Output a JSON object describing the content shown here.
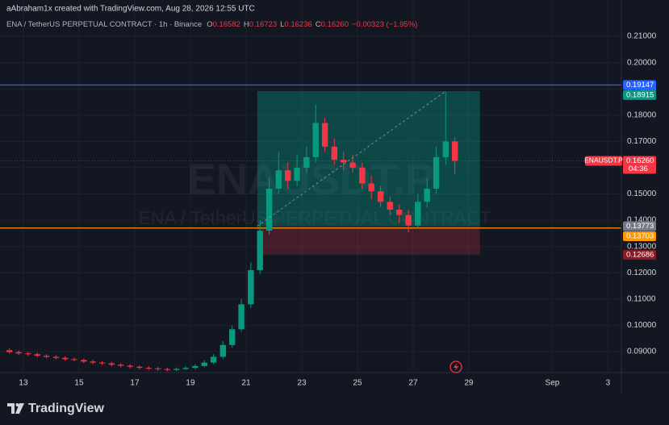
{
  "header": {
    "credit": "aAbraham1x created with TradingView.com, Aug 28, 2026 12:55 UTC",
    "symbol_line": "ENA / TetherUS PERPETUAL CONTRACT · 1h · Binance",
    "ohlc": [
      {
        "label": "O",
        "value": "0.16582"
      },
      {
        "label": "H",
        "value": "0.16723"
      },
      {
        "label": "L",
        "value": "0.16236"
      },
      {
        "label": "C",
        "value": "0.16260"
      }
    ],
    "change": "−0.00323 (−1.95%)"
  },
  "watermark": {
    "symbol": "ENAUSDT.P",
    "description": "ENA / TetherUS PERPETUAL CONTRACT"
  },
  "footer": {
    "brand": "TradingView"
  },
  "chart_data": {
    "type": "candlestick",
    "x": [
      12.5,
      12.83,
      13.17,
      13.5,
      13.83,
      14.17,
      14.5,
      14.83,
      15.17,
      15.5,
      15.83,
      16.17,
      16.5,
      16.83,
      17.17,
      17.5,
      17.83,
      18.17,
      18.5,
      18.83,
      19.17,
      19.5,
      19.83,
      20.17,
      20.5,
      20.83,
      21.17,
      21.5,
      21.83,
      22.17,
      22.5,
      22.83,
      23.17,
      23.5,
      23.83,
      24.17,
      24.5,
      24.83,
      25.17,
      25.5,
      25.83,
      26.17,
      26.5,
      26.83,
      27.17,
      27.5,
      27.83,
      28.17,
      28.5
    ],
    "open": [
      0.0905,
      0.0898,
      0.0893,
      0.089,
      0.0884,
      0.088,
      0.0876,
      0.0871,
      0.0868,
      0.0862,
      0.0858,
      0.0855,
      0.085,
      0.0846,
      0.0842,
      0.0838,
      0.0836,
      0.0833,
      0.083,
      0.0834,
      0.0838,
      0.0845,
      0.0858,
      0.088,
      0.0925,
      0.0985,
      0.108,
      0.121,
      0.136,
      0.152,
      0.159,
      0.155,
      0.16,
      0.164,
      0.177,
      0.168,
      0.163,
      0.162,
      0.16,
      0.154,
      0.151,
      0.147,
      0.144,
      0.142,
      0.138,
      0.147,
      0.152,
      0.164,
      0.17
    ],
    "high": [
      0.0912,
      0.0904,
      0.0899,
      0.0896,
      0.089,
      0.0886,
      0.0882,
      0.0877,
      0.0874,
      0.0868,
      0.0864,
      0.0861,
      0.0856,
      0.0852,
      0.0848,
      0.0844,
      0.0842,
      0.0839,
      0.084,
      0.0844,
      0.0852,
      0.0866,
      0.089,
      0.094,
      0.1,
      0.11,
      0.124,
      0.14,
      0.156,
      0.166,
      0.162,
      0.165,
      0.168,
      0.184,
      0.179,
      0.171,
      0.166,
      0.165,
      0.162,
      0.157,
      0.153,
      0.149,
      0.146,
      0.144,
      0.15,
      0.156,
      0.168,
      0.1891,
      0.1715
    ],
    "low": [
      0.0892,
      0.0887,
      0.0884,
      0.0878,
      0.0874,
      0.087,
      0.0865,
      0.0862,
      0.0856,
      0.0852,
      0.0849,
      0.0844,
      0.084,
      0.0836,
      0.0832,
      0.083,
      0.0827,
      0.0824,
      0.0825,
      0.0829,
      0.0833,
      0.084,
      0.0852,
      0.0872,
      0.0915,
      0.0975,
      0.1065,
      0.1195,
      0.1345,
      0.15,
      0.152,
      0.153,
      0.158,
      0.162,
      0.166,
      0.161,
      0.159,
      0.158,
      0.152,
      0.148,
      0.145,
      0.142,
      0.139,
      0.1354,
      0.137,
      0.145,
      0.15,
      0.161,
      0.1575
    ],
    "close": [
      0.0898,
      0.0893,
      0.089,
      0.0884,
      0.088,
      0.0876,
      0.0871,
      0.0868,
      0.0862,
      0.0858,
      0.0855,
      0.085,
      0.0846,
      0.0842,
      0.0838,
      0.0836,
      0.0833,
      0.083,
      0.0834,
      0.0838,
      0.0845,
      0.0858,
      0.088,
      0.0925,
      0.0985,
      0.108,
      0.121,
      0.136,
      0.152,
      0.159,
      0.155,
      0.16,
      0.164,
      0.177,
      0.168,
      0.163,
      0.162,
      0.16,
      0.154,
      0.151,
      0.147,
      0.144,
      0.142,
      0.138,
      0.147,
      0.152,
      0.164,
      0.17,
      0.1626
    ],
    "up_color": "#089981",
    "down_color": "#f23645",
    "xlim": [
      12.16,
      34.48
    ],
    "xticks": [
      13,
      15,
      17,
      19,
      21,
      23,
      25,
      27,
      29,
      {
        "value": 32,
        "label": "Sep"
      },
      {
        "value": 34,
        "label": "3"
      }
    ],
    "ylim": [
      0.082,
      0.2183
    ],
    "yticks": [
      {
        "value": 0.09,
        "label": "0.09000"
      },
      {
        "value": 0.1,
        "label": "0.10000"
      },
      {
        "value": 0.11,
        "label": "0.11000"
      },
      {
        "value": 0.12,
        "label": "0.12000"
      },
      {
        "value": 0.13,
        "label": "0.13000"
      },
      {
        "value": 0.14,
        "label": "0.14000"
      },
      {
        "value": 0.15,
        "label": "0.15000"
      },
      {
        "value": 0.16,
        "label": "0.16000"
      },
      {
        "value": 0.17,
        "label": "0.17000"
      },
      {
        "value": 0.18,
        "label": "0.18000"
      },
      {
        "value": 0.19,
        "label": "0.19000"
      },
      {
        "value": 0.2,
        "label": "0.20000"
      },
      {
        "value": 0.21,
        "label": "0.21000"
      }
    ],
    "grid": true,
    "price_lines": [
      {
        "value": 0.19147,
        "color": "#2962ff"
      },
      {
        "value": 0.13703,
        "color": "#ff9800"
      }
    ],
    "position": {
      "x": [
        21.4,
        29.4
      ],
      "entry": 0.13773,
      "target": 0.18915,
      "stop": 0.12686,
      "profit_color": "#089981",
      "loss_color": "#f23645"
    },
    "price_labels": [
      {
        "value": 0.19147,
        "label": "0.19147",
        "color": "#2962ff"
      },
      {
        "value": 0.18915,
        "label": "0.18915",
        "color": "#089981"
      },
      {
        "value": 0.1626,
        "label": "0.16260",
        "color": "#f23645",
        "name": "ENAUSDT.P",
        "countdown": "04:36"
      },
      {
        "value": 0.13773,
        "label": "0.13773",
        "color": "#787b86"
      },
      {
        "value": 0.13703,
        "label": "0.13703",
        "color": "#ff9800"
      },
      {
        "value": 0.12686,
        "label": "0.12686",
        "color": "#8b1a23"
      }
    ]
  }
}
